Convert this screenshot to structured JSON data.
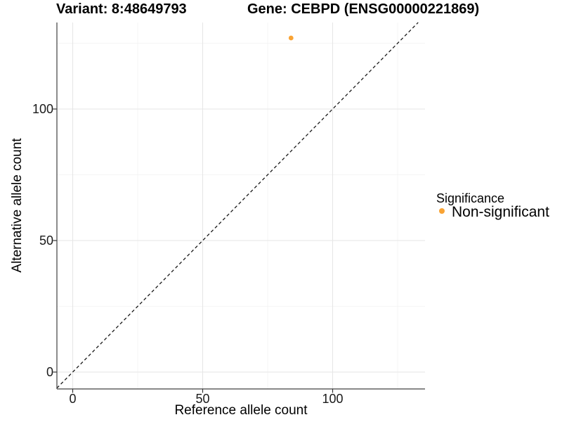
{
  "title": {
    "variant": "Variant: 8:48649793",
    "gene": "Gene: CEBPD (ENSG00000221869)"
  },
  "axes": {
    "x_label": "Reference allele count",
    "y_label": "Alternative allele count"
  },
  "legend": {
    "title": "Significance",
    "items": [
      {
        "label": "Non-significant",
        "color": "#F9A334"
      }
    ]
  },
  "colors": {
    "point_orange": "#F9A334",
    "grid_major": "#E6E6E6",
    "grid_minor": "#F2F2F2",
    "axis_line": "#404040",
    "tick_mark": "#333333",
    "reference_line": "#1A1A1A",
    "background": "#FFFFFF"
  },
  "chart_data": {
    "type": "scatter",
    "title": "Variant: 8:48649793 | Gene: CEBPD (ENSG00000221869)",
    "xlabel": "Reference allele count",
    "ylabel": "Alternative allele count",
    "xlim": [
      -6.1,
      135.5
    ],
    "ylim": [
      -6.4,
      132.9
    ],
    "x_major_ticks": [
      0,
      50,
      100
    ],
    "x_minor_gridlines": [
      25,
      75,
      125
    ],
    "y_major_ticks": [
      0,
      50,
      100
    ],
    "y_minor_gridlines": [
      25,
      75,
      125
    ],
    "grid": true,
    "legend_position": "right",
    "series": [
      {
        "name": "Non-significant",
        "color": "#F9A334",
        "points": [
          {
            "x": 84,
            "y": 127
          }
        ]
      }
    ],
    "reference_line": {
      "type": "identity",
      "style": "dashed",
      "color": "#1A1A1A"
    }
  }
}
